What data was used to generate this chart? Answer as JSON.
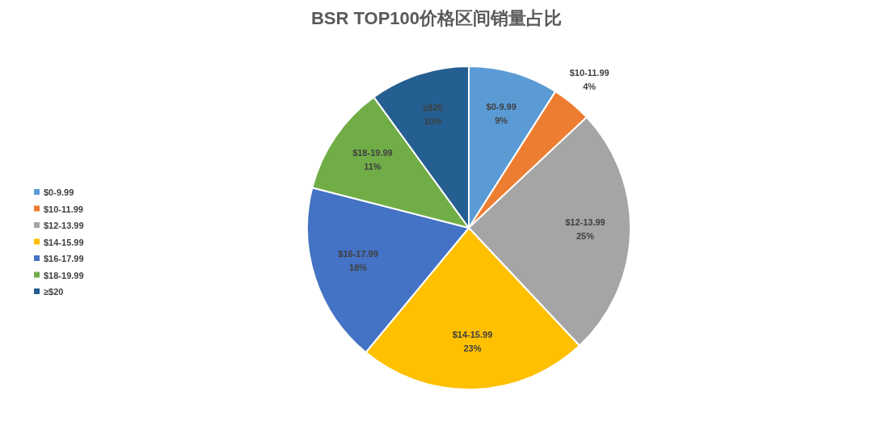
{
  "chart_data": {
    "type": "pie",
    "title": "BSR TOP100价格区间销量占比",
    "categories": [
      "$0-9.99",
      "$10-11.99",
      "$12-13.99",
      "$14-15.99",
      "$16-17.99",
      "$18-19.99",
      "≥$20"
    ],
    "values": [
      9,
      4,
      25,
      23,
      18,
      11,
      10
    ],
    "colors": [
      "#5b9bd5",
      "#ed7d31",
      "#a5a5a5",
      "#ffc000",
      "#4472c4",
      "#70ad47",
      "#255e91"
    ],
    "value_labels": [
      "9%",
      "4%",
      "25%",
      "23%",
      "18%",
      "11%",
      "10%"
    ],
    "legend": "left"
  }
}
